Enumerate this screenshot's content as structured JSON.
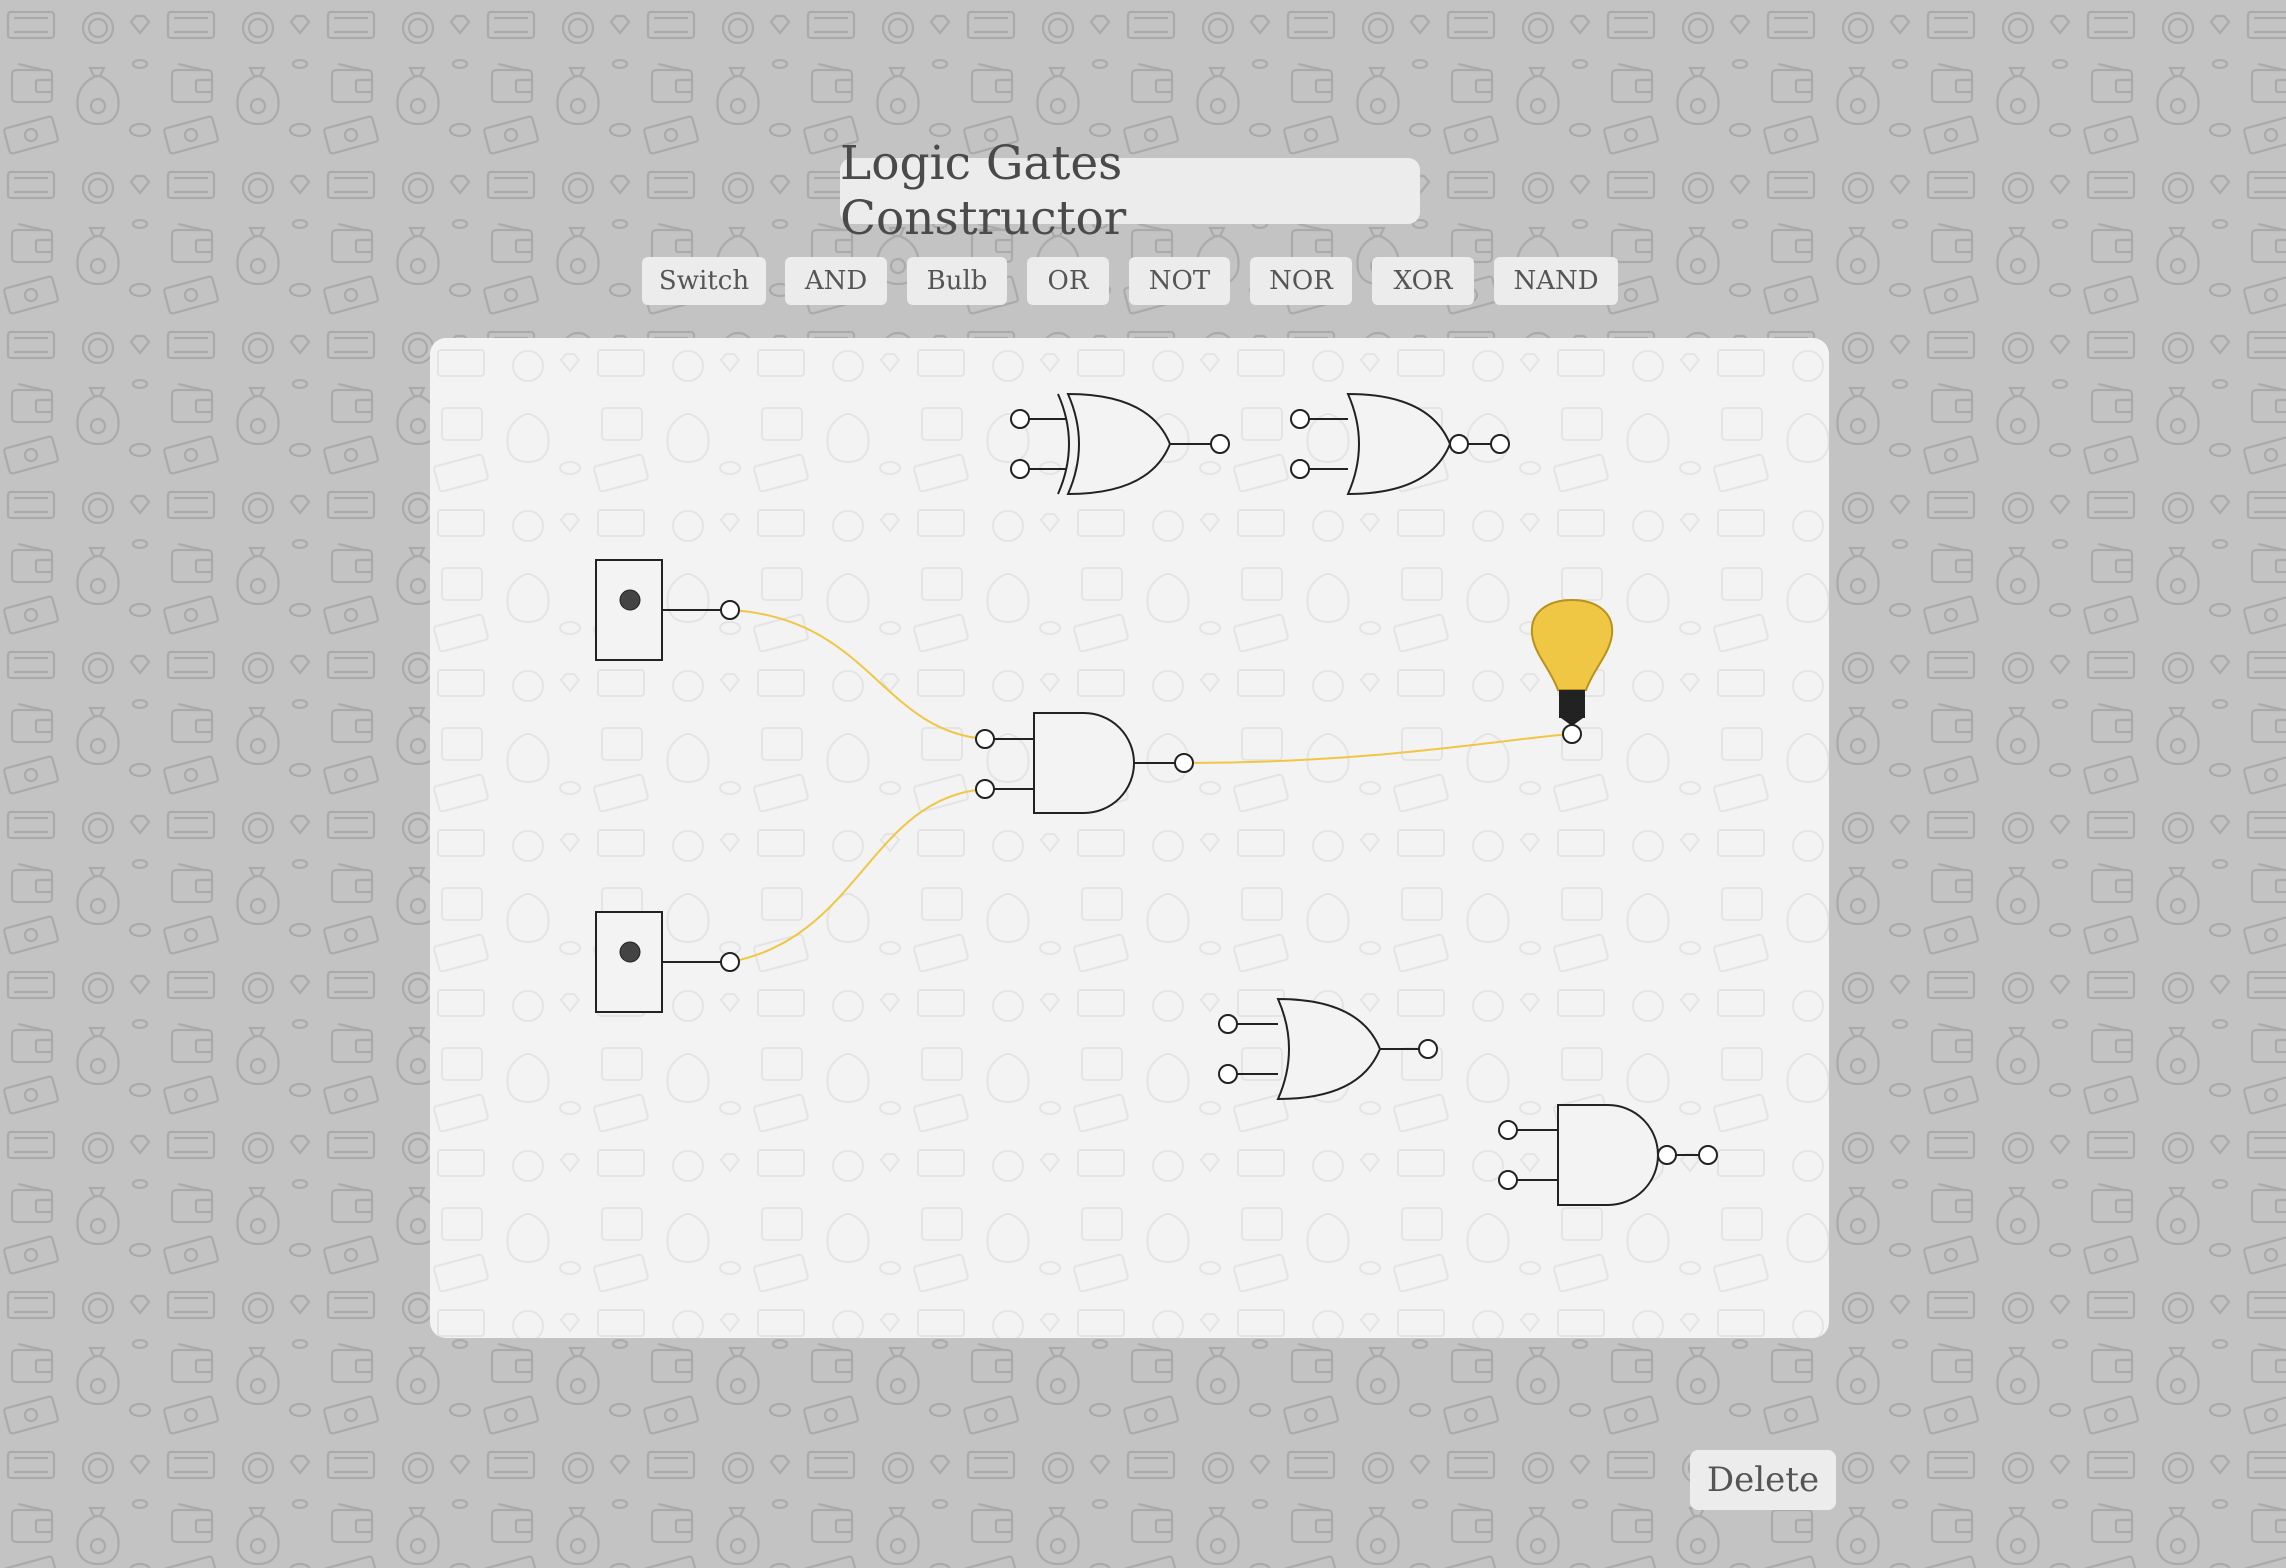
{
  "app": {
    "title": "Logic Gates Constructor"
  },
  "toolbar": {
    "buttons": [
      {
        "id": "switch",
        "label": "Switch"
      },
      {
        "id": "and",
        "label": "AND"
      },
      {
        "id": "bulb",
        "label": "Bulb"
      },
      {
        "id": "or",
        "label": "OR"
      },
      {
        "id": "not",
        "label": "NOT"
      },
      {
        "id": "nor",
        "label": "NOR"
      },
      {
        "id": "xor",
        "label": "XOR"
      },
      {
        "id": "nand",
        "label": "NAND"
      }
    ]
  },
  "actions": {
    "delete_label": "Delete"
  },
  "circuit": {
    "components": [
      {
        "id": "xor-gate",
        "type": "XOR"
      },
      {
        "id": "nor-gate",
        "type": "NOR"
      },
      {
        "id": "switch-1",
        "type": "Switch"
      },
      {
        "id": "switch-2",
        "type": "Switch"
      },
      {
        "id": "and-gate",
        "type": "AND"
      },
      {
        "id": "bulb-1",
        "type": "Bulb",
        "lit": true
      },
      {
        "id": "or-gate",
        "type": "OR"
      },
      {
        "id": "nand-gate",
        "type": "NAND"
      }
    ],
    "wires": [
      {
        "from": "switch-1.out",
        "to": "and-gate.in1",
        "active": true
      },
      {
        "from": "switch-2.out",
        "to": "and-gate.in2",
        "active": true
      },
      {
        "from": "and-gate.out",
        "to": "bulb-1.in",
        "active": true
      }
    ]
  },
  "colors": {
    "background": "#c3c3c3",
    "pattern": "#aaaaaa",
    "canvas": "#f3f3f3",
    "button": "#ececec",
    "wire_active": "#f0c645",
    "bulb_glass": "#f0c645",
    "bulb_base": "#222222"
  }
}
